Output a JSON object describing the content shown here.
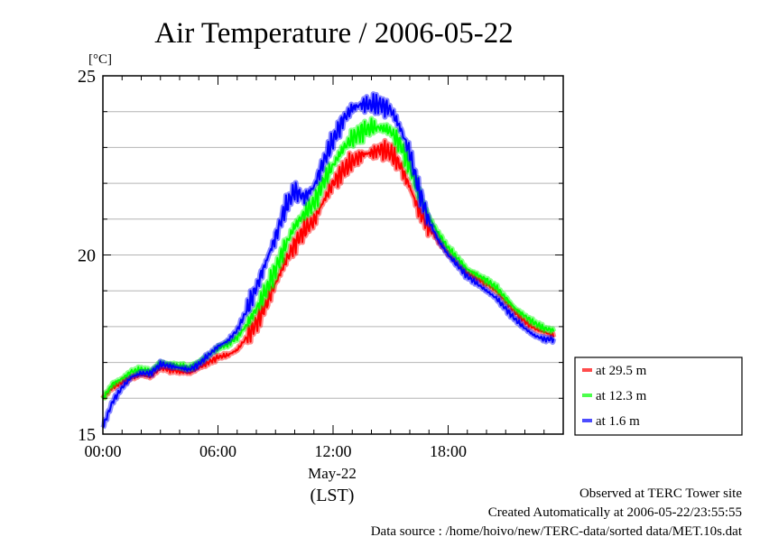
{
  "chart_data": {
    "type": "line",
    "title": "Air Temperature / 2006-05-22",
    "yunit": "[°C]",
    "ylim": [
      15,
      25
    ],
    "yticks": [
      15,
      20,
      25
    ],
    "ygrid_step": 1,
    "xlim_hours": [
      0,
      24
    ],
    "xticks": [
      {
        "hour": 0,
        "label": "00:00"
      },
      {
        "hour": 6,
        "label": "06:00"
      },
      {
        "hour": 12,
        "label": "12:00"
      },
      {
        "hour": 18,
        "label": "18:00"
      }
    ],
    "xdate_label": "May-22",
    "xunit_label": "(LST)",
    "grid": "horizontal",
    "legend_position": "bottom-right-outside",
    "series": [
      {
        "name": "at 29.5 m",
        "color": "#ff0000",
        "points": [
          [
            0,
            16.0
          ],
          [
            0.5,
            16.3
          ],
          [
            1,
            16.45
          ],
          [
            1.5,
            16.6
          ],
          [
            2,
            16.65
          ],
          [
            2.5,
            16.6
          ],
          [
            3,
            16.85
          ],
          [
            3.5,
            16.8
          ],
          [
            4,
            16.75
          ],
          [
            4.5,
            16.7
          ],
          [
            5,
            16.85
          ],
          [
            5.5,
            17.0
          ],
          [
            6,
            17.15
          ],
          [
            6.5,
            17.2
          ],
          [
            7,
            17.35
          ],
          [
            7.5,
            17.7
          ],
          [
            8,
            18.1
          ],
          [
            8.5,
            18.6
          ],
          [
            9,
            19.2
          ],
          [
            9.5,
            19.8
          ],
          [
            10,
            20.3
          ],
          [
            10.5,
            20.7
          ],
          [
            11,
            20.95
          ],
          [
            11.5,
            21.5
          ],
          [
            12,
            22.0
          ],
          [
            12.5,
            22.35
          ],
          [
            13,
            22.6
          ],
          [
            13.5,
            22.8
          ],
          [
            14,
            22.85
          ],
          [
            14.5,
            22.95
          ],
          [
            15,
            22.85
          ],
          [
            15.5,
            22.5
          ],
          [
            16,
            21.9
          ],
          [
            16.5,
            21.2
          ],
          [
            17,
            20.75
          ],
          [
            17.5,
            20.4
          ],
          [
            18,
            20.05
          ],
          [
            18.5,
            19.75
          ],
          [
            19,
            19.5
          ],
          [
            19.5,
            19.35
          ],
          [
            20,
            19.2
          ],
          [
            20.5,
            19.0
          ],
          [
            21,
            18.7
          ],
          [
            21.5,
            18.4
          ],
          [
            22,
            18.15
          ],
          [
            22.5,
            17.95
          ],
          [
            23,
            17.85
          ],
          [
            23.5,
            17.75
          ]
        ]
      },
      {
        "name": "at 12.3 m",
        "color": "#00ff00",
        "points": [
          [
            0,
            16.0
          ],
          [
            0.5,
            16.4
          ],
          [
            1,
            16.55
          ],
          [
            1.5,
            16.75
          ],
          [
            2,
            16.8
          ],
          [
            2.5,
            16.75
          ],
          [
            3,
            17.0
          ],
          [
            3.5,
            16.95
          ],
          [
            4,
            16.9
          ],
          [
            4.5,
            16.85
          ],
          [
            5,
            17.0
          ],
          [
            5.5,
            17.2
          ],
          [
            6,
            17.4
          ],
          [
            6.5,
            17.5
          ],
          [
            7,
            17.7
          ],
          [
            7.5,
            18.05
          ],
          [
            8,
            18.5
          ],
          [
            8.5,
            19.0
          ],
          [
            9,
            19.6
          ],
          [
            9.5,
            20.25
          ],
          [
            10,
            20.8
          ],
          [
            10.5,
            21.15
          ],
          [
            11,
            21.45
          ],
          [
            11.5,
            22.05
          ],
          [
            12,
            22.5
          ],
          [
            12.5,
            22.95
          ],
          [
            13,
            23.25
          ],
          [
            13.5,
            23.45
          ],
          [
            14,
            23.55
          ],
          [
            14.5,
            23.55
          ],
          [
            15,
            23.45
          ],
          [
            15.5,
            23.1
          ],
          [
            16,
            22.45
          ],
          [
            16.5,
            21.7
          ],
          [
            17,
            21.05
          ],
          [
            17.5,
            20.6
          ],
          [
            18,
            20.2
          ],
          [
            18.5,
            19.9
          ],
          [
            19,
            19.6
          ],
          [
            19.5,
            19.45
          ],
          [
            20,
            19.3
          ],
          [
            20.5,
            19.1
          ],
          [
            21,
            18.8
          ],
          [
            21.5,
            18.5
          ],
          [
            22,
            18.3
          ],
          [
            22.5,
            18.1
          ],
          [
            23,
            17.95
          ],
          [
            23.5,
            17.9
          ]
        ]
      },
      {
        "name": "at 1.6 m",
        "color": "#0000ff",
        "points": [
          [
            0,
            15.2
          ],
          [
            0.5,
            15.9
          ],
          [
            1,
            16.3
          ],
          [
            1.5,
            16.6
          ],
          [
            2,
            16.7
          ],
          [
            2.5,
            16.7
          ],
          [
            3,
            16.95
          ],
          [
            3.5,
            16.9
          ],
          [
            4,
            16.85
          ],
          [
            4.5,
            16.8
          ],
          [
            5,
            16.95
          ],
          [
            5.5,
            17.2
          ],
          [
            6,
            17.45
          ],
          [
            6.5,
            17.6
          ],
          [
            7,
            17.9
          ],
          [
            7.5,
            18.45
          ],
          [
            8,
            19.1
          ],
          [
            8.5,
            19.8
          ],
          [
            9,
            20.5
          ],
          [
            9.5,
            21.3
          ],
          [
            10,
            21.8
          ],
          [
            10.5,
            21.6
          ],
          [
            11,
            21.9
          ],
          [
            11.5,
            22.6
          ],
          [
            12,
            23.2
          ],
          [
            12.5,
            23.75
          ],
          [
            13,
            24.1
          ],
          [
            13.5,
            24.2
          ],
          [
            14,
            24.2
          ],
          [
            14.5,
            24.2
          ],
          [
            15,
            24.05
          ],
          [
            15.5,
            23.55
          ],
          [
            16,
            22.85
          ],
          [
            16.5,
            21.75
          ],
          [
            17,
            20.95
          ],
          [
            17.5,
            20.4
          ],
          [
            18,
            20.0
          ],
          [
            18.5,
            19.7
          ],
          [
            19,
            19.4
          ],
          [
            19.5,
            19.2
          ],
          [
            20,
            19.0
          ],
          [
            20.5,
            18.8
          ],
          [
            21,
            18.5
          ],
          [
            21.5,
            18.2
          ],
          [
            22,
            17.95
          ],
          [
            22.5,
            17.75
          ],
          [
            23,
            17.65
          ],
          [
            23.5,
            17.65
          ]
        ]
      }
    ]
  },
  "footer": {
    "site": "Observed at TERC Tower site",
    "created": "Created Automatically at 2006-05-22/23:55:55",
    "source": "Data source : /home/hoivo/new/TERC-data/sorted  data/MET.10s.dat"
  }
}
